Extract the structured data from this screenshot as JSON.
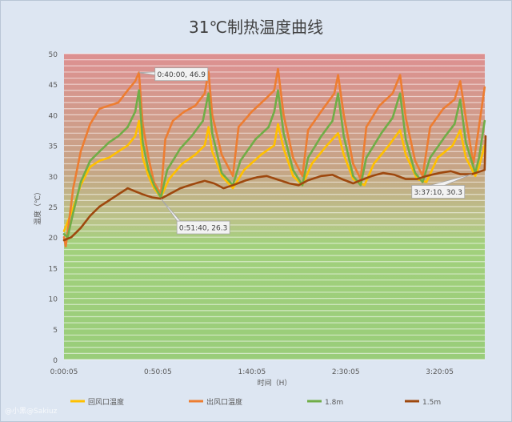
{
  "chart_data": {
    "type": "line",
    "title": "31℃制热温度曲线",
    "xlabel": "时间（H）",
    "ylabel": "温度（℃）",
    "ylim": [
      0,
      50
    ],
    "yticks": [
      0,
      5,
      10,
      15,
      20,
      25,
      30,
      35,
      40,
      45,
      50
    ],
    "xlim_seconds": [
      5,
      13445
    ],
    "xtick_labels": [
      "0:00:05",
      "0:50:05",
      "1:40:05",
      "2:30:05",
      "3:20:05"
    ],
    "background": "horizontal stripes fading from red (top) to green (bottom)",
    "grid": true,
    "legend_position": "bottom",
    "series": [
      {
        "name": "回风口温度",
        "color": "#ffc000",
        "points": [
          [
            "0:00:05",
            21.0
          ],
          [
            "0:04:00",
            24.0
          ],
          [
            "0:09:00",
            28.5
          ],
          [
            "0:14:00",
            31.5
          ],
          [
            "0:19:00",
            32.5
          ],
          [
            "0:24:00",
            33.0
          ],
          [
            "0:29:00",
            34.0
          ],
          [
            "0:34:00",
            35.0
          ],
          [
            "0:38:00",
            36.5
          ],
          [
            "0:40:00",
            39.0
          ],
          [
            "0:42:00",
            33.0
          ],
          [
            "0:45:00",
            30.0
          ],
          [
            "0:48:00",
            28.0
          ],
          [
            "0:51:40",
            26.5
          ],
          [
            "0:56:00",
            29.5
          ],
          [
            "1:03:00",
            32.0
          ],
          [
            "1:10:00",
            33.5
          ],
          [
            "1:15:00",
            35.0
          ],
          [
            "1:17:00",
            38.0
          ],
          [
            "1:19:00",
            34.0
          ],
          [
            "1:24:00",
            30.0
          ],
          [
            "1:30:00",
            28.0
          ],
          [
            "1:36:00",
            31.0
          ],
          [
            "1:45:00",
            33.5
          ],
          [
            "1:52:00",
            35.0
          ],
          [
            "1:54:00",
            38.5
          ],
          [
            "1:57:00",
            34.5
          ],
          [
            "2:02:00",
            30.0
          ],
          [
            "2:07:00",
            28.5
          ],
          [
            "2:12:00",
            32.0
          ],
          [
            "2:20:00",
            35.0
          ],
          [
            "2:26:00",
            37.0
          ],
          [
            "2:29:00",
            33.5
          ],
          [
            "2:34:00",
            29.5
          ],
          [
            "2:40:00",
            28.5
          ],
          [
            "2:45:00",
            32.0
          ],
          [
            "2:53:00",
            35.0
          ],
          [
            "2:59:00",
            37.5
          ],
          [
            "3:02:00",
            33.5
          ],
          [
            "3:08:00",
            29.5
          ],
          [
            "3:13:00",
            29.0
          ],
          [
            "3:19:00",
            33.0
          ],
          [
            "3:27:00",
            35.0
          ],
          [
            "3:31:00",
            37.5
          ],
          [
            "3:34:00",
            33.0
          ],
          [
            "3:39:00",
            30.0
          ],
          [
            "3:41:00",
            31.5
          ],
          [
            "3:44:00",
            35.0
          ]
        ]
      },
      {
        "name": "出风口温度",
        "color": "#ed7d31",
        "points": [
          [
            "0:00:05",
            20.0
          ],
          [
            "0:01:00",
            18.5
          ],
          [
            "0:02:30",
            22.0
          ],
          [
            "0:05:00",
            28.0
          ],
          [
            "0:09:00",
            34.0
          ],
          [
            "0:14:00",
            38.5
          ],
          [
            "0:19:00",
            41.0
          ],
          [
            "0:24:00",
            41.5
          ],
          [
            "0:29:00",
            42.0
          ],
          [
            "0:34:00",
            44.0
          ],
          [
            "0:38:00",
            45.5
          ],
          [
            "0:40:00",
            46.9
          ],
          [
            "0:42:00",
            38.5
          ],
          [
            "0:45:00",
            33.0
          ],
          [
            "0:48:00",
            29.0
          ],
          [
            "0:51:40",
            27.0
          ],
          [
            "0:54:00",
            36.0
          ],
          [
            "0:58:00",
            39.0
          ],
          [
            "1:04:00",
            40.5
          ],
          [
            "1:10:00",
            41.5
          ],
          [
            "1:15:00",
            43.5
          ],
          [
            "1:17:00",
            47.0
          ],
          [
            "1:19:00",
            40.0
          ],
          [
            "1:24:00",
            33.5
          ],
          [
            "1:30:00",
            30.0
          ],
          [
            "1:33:00",
            38.0
          ],
          [
            "1:40:00",
            40.5
          ],
          [
            "1:47:00",
            42.5
          ],
          [
            "1:52:00",
            44.0
          ],
          [
            "1:54:00",
            47.5
          ],
          [
            "1:57:00",
            40.0
          ],
          [
            "2:02:00",
            33.0
          ],
          [
            "2:07:00",
            30.0
          ],
          [
            "2:10:00",
            37.5
          ],
          [
            "2:18:00",
            41.0
          ],
          [
            "2:24:00",
            43.5
          ],
          [
            "2:26:00",
            46.5
          ],
          [
            "2:29:00",
            40.0
          ],
          [
            "2:34:00",
            32.0
          ],
          [
            "2:38:00",
            29.5
          ],
          [
            "2:41:00",
            38.0
          ],
          [
            "2:48:00",
            41.5
          ],
          [
            "2:55:00",
            43.5
          ],
          [
            "2:59:00",
            46.5
          ],
          [
            "3:02:00",
            39.5
          ],
          [
            "3:07:00",
            32.5
          ],
          [
            "3:11:00",
            30.0
          ],
          [
            "3:15:00",
            38.0
          ],
          [
            "3:22:00",
            41.0
          ],
          [
            "3:28:00",
            42.5
          ],
          [
            "3:31:00",
            45.5
          ],
          [
            "3:34:00",
            39.5
          ],
          [
            "3:38:00",
            32.0
          ],
          [
            "3:40:00",
            36.0
          ],
          [
            "3:44:00",
            44.5
          ]
        ]
      },
      {
        "name": "1.8m",
        "color": "#70ad47",
        "points": [
          [
            "0:00:05",
            20.5
          ],
          [
            "0:02:00",
            20.0
          ],
          [
            "0:05:00",
            24.0
          ],
          [
            "0:09:00",
            29.0
          ],
          [
            "0:14:00",
            32.5
          ],
          [
            "0:19:00",
            34.0
          ],
          [
            "0:24:00",
            35.5
          ],
          [
            "0:29:00",
            36.5
          ],
          [
            "0:34:00",
            38.0
          ],
          [
            "0:38:00",
            40.5
          ],
          [
            "0:40:00",
            44.0
          ],
          [
            "0:42:00",
            35.5
          ],
          [
            "0:45:00",
            31.0
          ],
          [
            "0:48:00",
            28.5
          ],
          [
            "0:51:40",
            26.5
          ],
          [
            "0:55:00",
            31.0
          ],
          [
            "1:02:00",
            34.5
          ],
          [
            "1:08:00",
            36.5
          ],
          [
            "1:14:00",
            39.0
          ],
          [
            "1:17:00",
            43.5
          ],
          [
            "1:19:00",
            37.0
          ],
          [
            "1:24:00",
            30.5
          ],
          [
            "1:30:00",
            28.5
          ],
          [
            "1:34:00",
            32.5
          ],
          [
            "1:42:00",
            36.0
          ],
          [
            "1:49:00",
            38.0
          ],
          [
            "1:52:00",
            40.5
          ],
          [
            "1:54:00",
            44.0
          ],
          [
            "1:57:00",
            37.0
          ],
          [
            "2:02:00",
            31.0
          ],
          [
            "2:07:00",
            28.5
          ],
          [
            "2:10:00",
            33.0
          ],
          [
            "2:17:00",
            36.5
          ],
          [
            "2:23:00",
            39.0
          ],
          [
            "2:26:00",
            43.5
          ],
          [
            "2:29:00",
            36.5
          ],
          [
            "2:34:00",
            30.0
          ],
          [
            "2:38:00",
            28.5
          ],
          [
            "2:41:00",
            33.0
          ],
          [
            "2:49:00",
            37.0
          ],
          [
            "2:55:00",
            39.5
          ],
          [
            "2:59:00",
            43.5
          ],
          [
            "3:02:00",
            36.0
          ],
          [
            "3:07:00",
            30.5
          ],
          [
            "3:11:00",
            29.0
          ],
          [
            "3:15:00",
            33.0
          ],
          [
            "3:23:00",
            36.5
          ],
          [
            "3:28:00",
            38.5
          ],
          [
            "3:31:00",
            42.5
          ],
          [
            "3:34:00",
            35.5
          ],
          [
            "3:39:00",
            30.5
          ],
          [
            "3:41:00",
            33.0
          ],
          [
            "3:44:00",
            39.0
          ]
        ]
      },
      {
        "name": "1.5m",
        "color": "#9e480e",
        "points": [
          [
            "0:00:05",
            19.5
          ],
          [
            "0:04:00",
            20.0
          ],
          [
            "0:09:00",
            21.5
          ],
          [
            "0:14:00",
            23.5
          ],
          [
            "0:19:00",
            25.0
          ],
          [
            "0:24:00",
            26.0
          ],
          [
            "0:29:00",
            27.0
          ],
          [
            "0:34:00",
            28.0
          ],
          [
            "0:38:00",
            27.5
          ],
          [
            "0:42:00",
            27.0
          ],
          [
            "0:47:00",
            26.5
          ],
          [
            "0:51:40",
            26.3
          ],
          [
            "0:56:00",
            27.0
          ],
          [
            "1:02:00",
            28.0
          ],
          [
            "1:10:00",
            28.8
          ],
          [
            "1:15:00",
            29.2
          ],
          [
            "1:20:00",
            28.8
          ],
          [
            "1:25:00",
            28.0
          ],
          [
            "1:30:00",
            28.5
          ],
          [
            "1:37:00",
            29.3
          ],
          [
            "1:43:00",
            29.8
          ],
          [
            "1:48:00",
            30.0
          ],
          [
            "1:53:00",
            29.5
          ],
          [
            "2:00:00",
            28.8
          ],
          [
            "2:05:00",
            28.5
          ],
          [
            "2:10:00",
            29.3
          ],
          [
            "2:17:00",
            30.0
          ],
          [
            "2:23:00",
            30.2
          ],
          [
            "2:28:00",
            29.5
          ],
          [
            "2:34:00",
            28.8
          ],
          [
            "2:38:00",
            29.3
          ],
          [
            "2:44:00",
            30.0
          ],
          [
            "2:50:00",
            30.5
          ],
          [
            "2:56:00",
            30.2
          ],
          [
            "3:02:00",
            29.5
          ],
          [
            "3:08:00",
            29.5
          ],
          [
            "3:13:00",
            30.0
          ],
          [
            "3:20:00",
            30.5
          ],
          [
            "3:26:00",
            30.8
          ],
          [
            "3:31:00",
            30.3
          ],
          [
            "3:37:10",
            30.3
          ],
          [
            "3:44:00",
            31.0
          ],
          [
            "3:44:30",
            36.5
          ]
        ]
      }
    ],
    "annotations": [
      {
        "label": "0:40:00, 46.9",
        "x": "0:40:00",
        "y": 46.9
      },
      {
        "label": "0:51:40, 26.3",
        "x": "0:51:40",
        "y": 26.3
      },
      {
        "label": "3:37:10, 30.3",
        "x": "3:37:10",
        "y": 30.3
      }
    ]
  },
  "watermark": "@小黑@Sakiuz"
}
